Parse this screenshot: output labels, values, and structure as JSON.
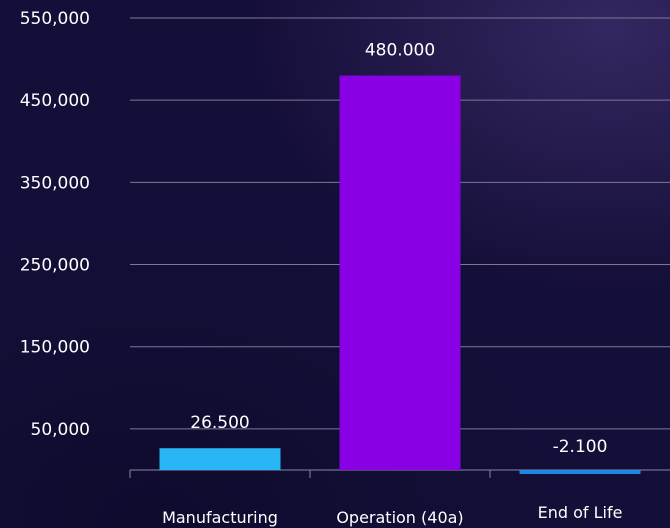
{
  "chart_data": {
    "type": "bar",
    "categories": [
      "Manufacturing",
      "Operation (40a)",
      "End of Life"
    ],
    "values": [
      26500,
      480000,
      -2100
    ],
    "data_labels": [
      "26.500",
      "480.000",
      "-2.100"
    ],
    "bar_colors": [
      "#29b6f6",
      "#8a00e5",
      "#1e88e5"
    ],
    "y_ticks": [
      {
        "value": 550000,
        "label": "550,000"
      },
      {
        "value": 450000,
        "label": "450,000"
      },
      {
        "value": 350000,
        "label": "350,000"
      },
      {
        "value": 250000,
        "label": "250,000"
      },
      {
        "value": 150000,
        "label": "150,000"
      },
      {
        "value": 50000,
        "label": "50,000"
      }
    ],
    "ylim": [
      -8000,
      550000
    ],
    "grid": true,
    "title": "",
    "xlabel": "",
    "ylabel": ""
  }
}
